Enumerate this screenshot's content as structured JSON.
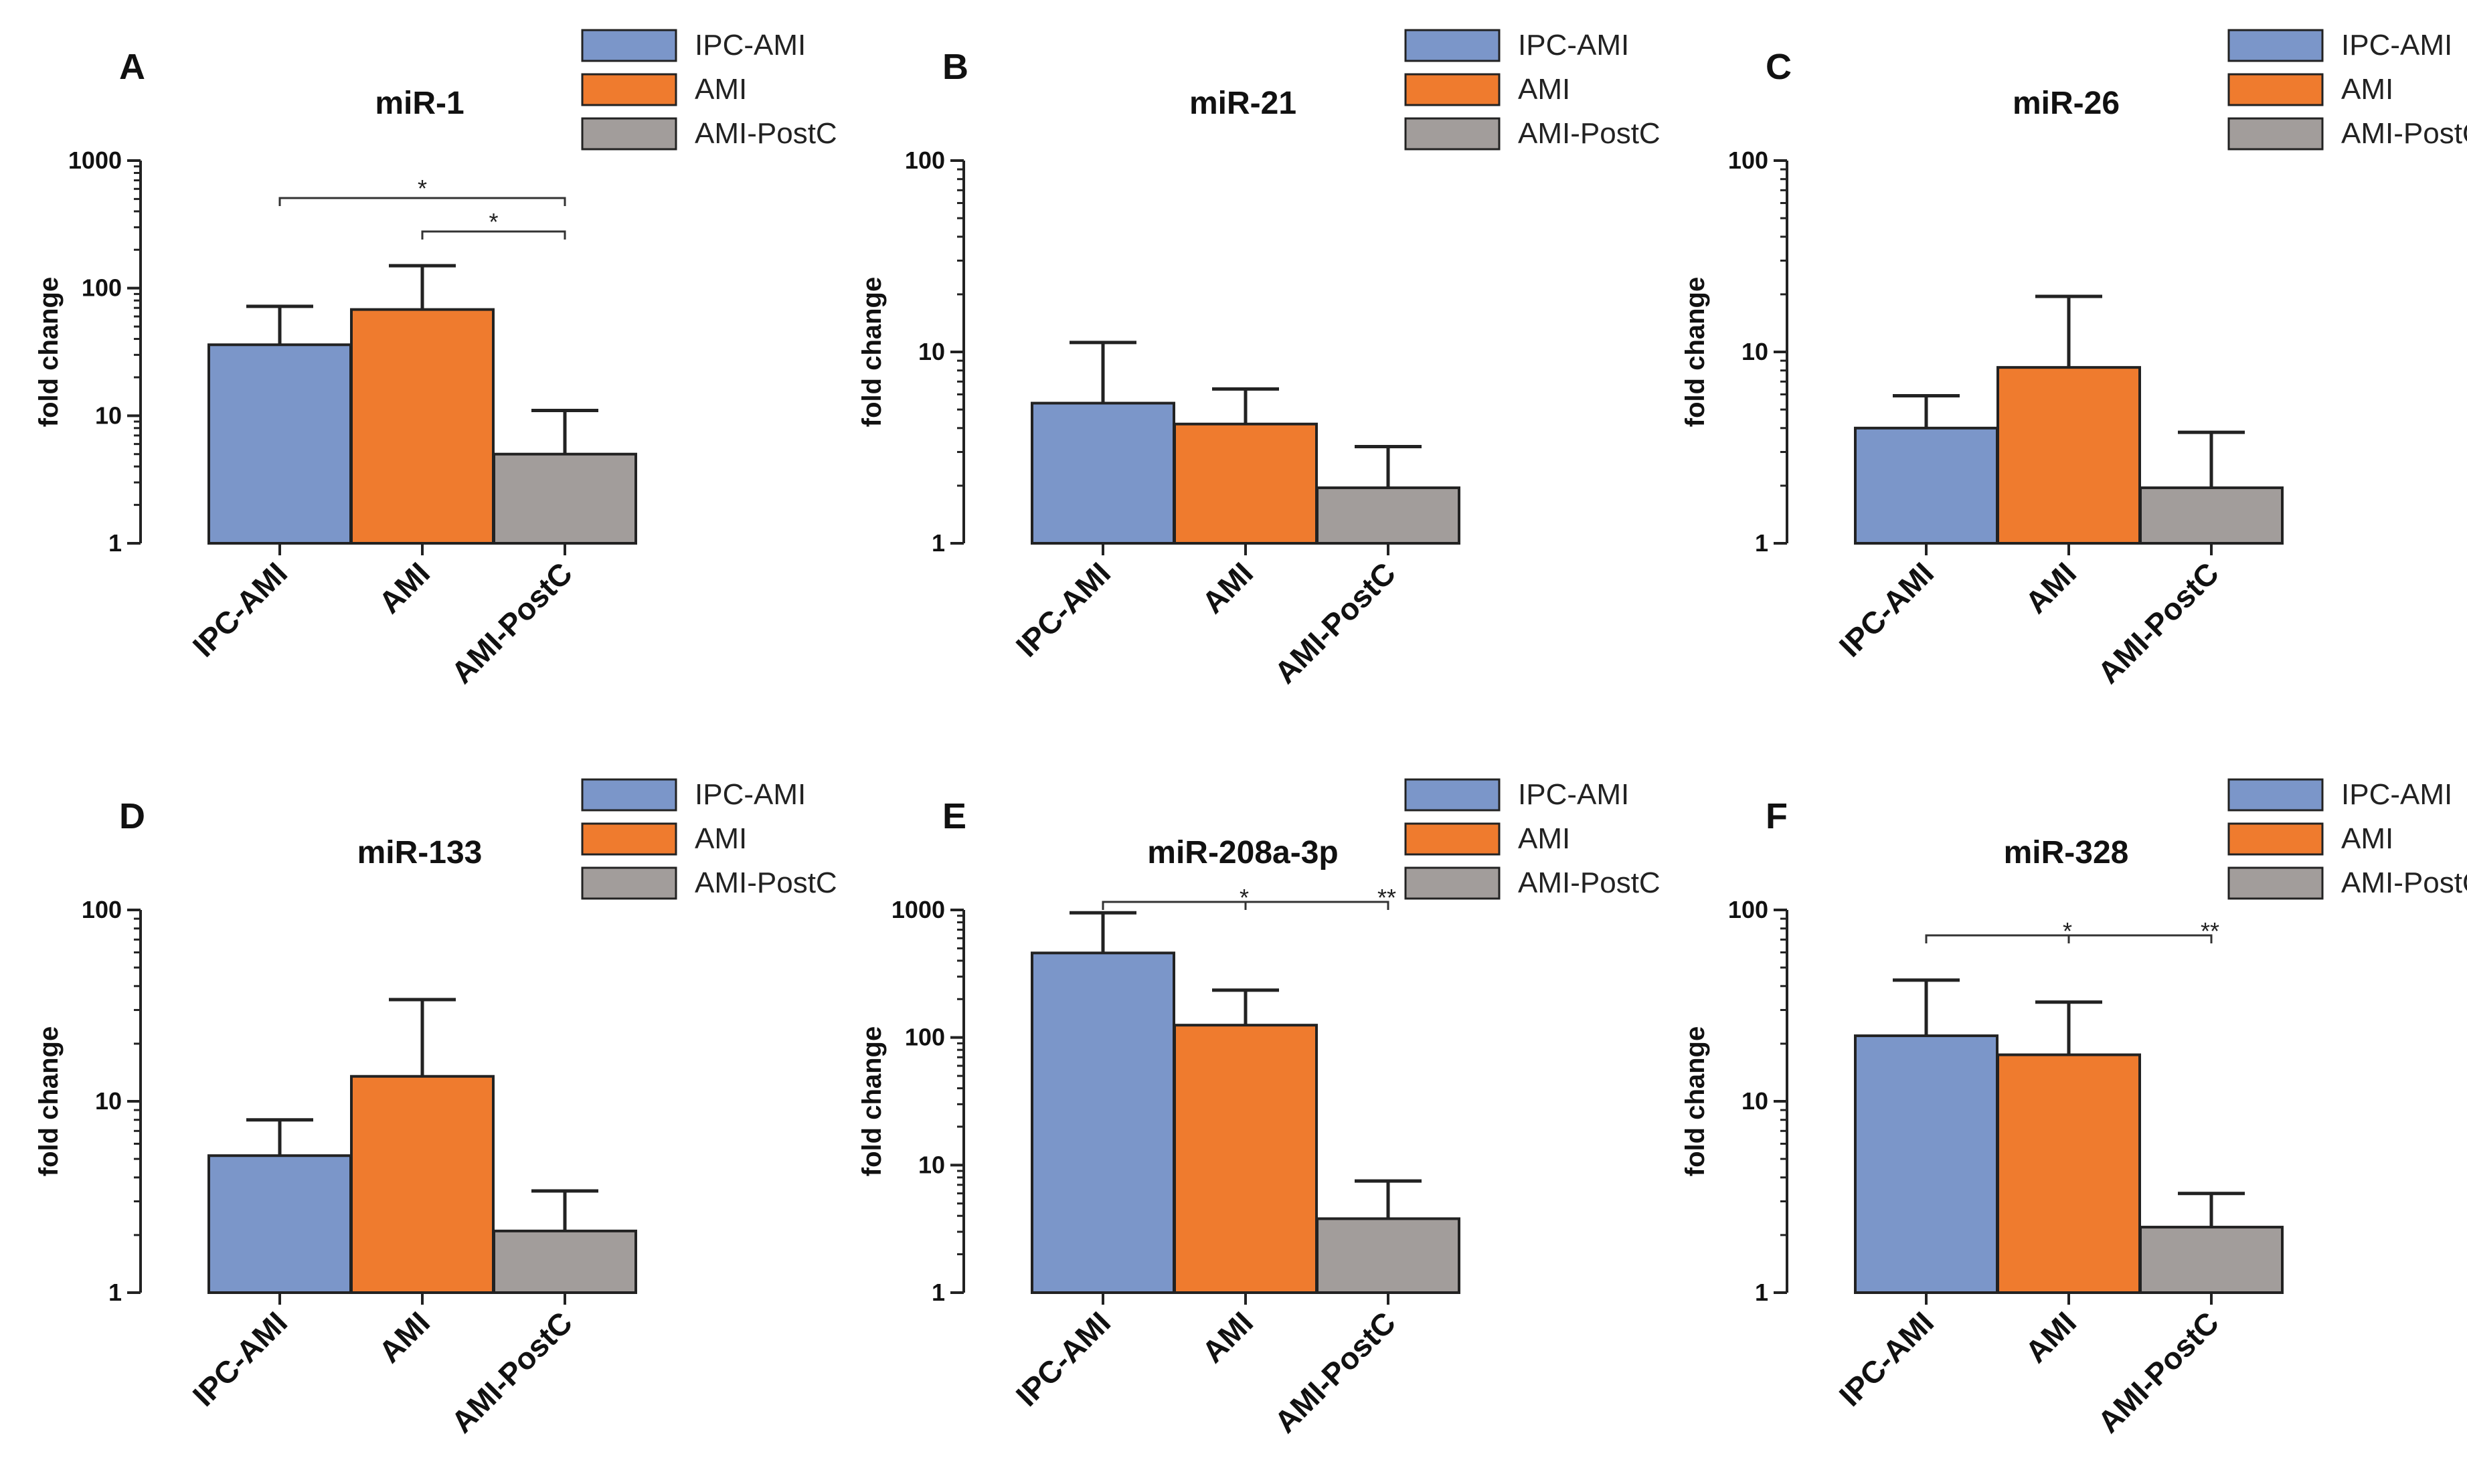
{
  "colors": {
    "IPC-AMI": "#7b96c9",
    "AMI": "#ef7b2e",
    "AMI-PostC": "#a29d9b"
  },
  "chart_data": [
    {
      "panel": "A",
      "title": "miR-1",
      "type": "bar",
      "scale": "log",
      "ylim": [
        1,
        1000
      ],
      "yticks": [
        "1",
        "10",
        "100",
        "1000"
      ],
      "ylabel": "fold change",
      "categories": [
        "IPC-AMI",
        "AMI",
        "AMI-PostC"
      ],
      "values": [
        36,
        68,
        5
      ],
      "errors_upper": [
        72,
        150,
        11
      ],
      "legend": [
        "IPC-AMI",
        "AMI",
        "AMI-PostC"
      ],
      "significance": [
        {
          "from": "IPC-AMI",
          "to": "AMI-PostC",
          "label": "*"
        },
        {
          "from": "AMI",
          "to": "AMI-PostC",
          "label": "*"
        }
      ]
    },
    {
      "panel": "B",
      "title": "miR-21",
      "type": "bar",
      "scale": "log",
      "ylim": [
        1,
        100
      ],
      "yticks": [
        "1",
        "10",
        "100"
      ],
      "ylabel": "fold change",
      "categories": [
        "IPC-AMI",
        "AMI",
        "AMI-PostC"
      ],
      "values": [
        5.4,
        4.2,
        1.95
      ],
      "errors_upper": [
        11.2,
        6.4,
        3.2
      ],
      "legend": [
        "IPC-AMI",
        "AMI",
        "AMI-PostC"
      ],
      "significance": []
    },
    {
      "panel": "C",
      "title": "miR-26",
      "type": "bar",
      "scale": "log",
      "ylim": [
        1,
        100
      ],
      "yticks": [
        "1",
        "10",
        "100"
      ],
      "ylabel": "fold change",
      "categories": [
        "IPC-AMI",
        "AMI",
        "AMI-PostC"
      ],
      "values": [
        4.0,
        8.3,
        1.95
      ],
      "errors_upper": [
        5.9,
        19.5,
        3.8
      ],
      "legend": [
        "IPC-AMI",
        "AMI",
        "AMI-PostC"
      ],
      "significance": []
    },
    {
      "panel": "D",
      "title": "miR-133",
      "type": "bar",
      "scale": "log",
      "ylim": [
        1,
        100
      ],
      "yticks": [
        "1",
        "10",
        "100"
      ],
      "ylabel": "fold change",
      "categories": [
        "IPC-AMI",
        "AMI",
        "AMI-PostC"
      ],
      "values": [
        5.2,
        13.5,
        2.1
      ],
      "errors_upper": [
        8.0,
        34,
        3.4
      ],
      "legend": [
        "IPC-AMI",
        "AMI",
        "AMI-PostC"
      ],
      "significance": []
    },
    {
      "panel": "E",
      "title": "miR-208a-3p",
      "type": "bar",
      "scale": "log",
      "ylim": [
        1,
        1000
      ],
      "yticks": [
        "1",
        "10",
        "100",
        "1000"
      ],
      "ylabel": "fold change",
      "categories": [
        "IPC-AMI",
        "AMI",
        "AMI-PostC"
      ],
      "values": [
        460,
        125,
        3.8
      ],
      "errors_upper": [
        950,
        235,
        7.5
      ],
      "legend": [
        "IPC-AMI",
        "AMI",
        "AMI-PostC"
      ],
      "significance": [
        {
          "from": "IPC-AMI",
          "to": "AMI-PostC",
          "marks": [
            {
              "at": "AMI",
              "label": "*"
            },
            {
              "at": "AMI-PostC",
              "label": "**"
            }
          ]
        }
      ]
    },
    {
      "panel": "F",
      "title": "miR-328",
      "type": "bar",
      "scale": "log",
      "ylim": [
        1,
        100
      ],
      "yticks": [
        "1",
        "10",
        "100"
      ],
      "ylabel": "fold change",
      "categories": [
        "IPC-AMI",
        "AMI",
        "AMI-PostC"
      ],
      "values": [
        22,
        17.5,
        2.2
      ],
      "errors_upper": [
        43,
        33,
        3.3
      ],
      "legend": [
        "IPC-AMI",
        "AMI",
        "AMI-PostC"
      ],
      "significance": [
        {
          "from": "IPC-AMI",
          "to": "AMI-PostC",
          "marks": [
            {
              "at": "AMI",
              "label": "*"
            },
            {
              "at": "AMI-PostC",
              "label": "**"
            }
          ]
        }
      ]
    }
  ]
}
